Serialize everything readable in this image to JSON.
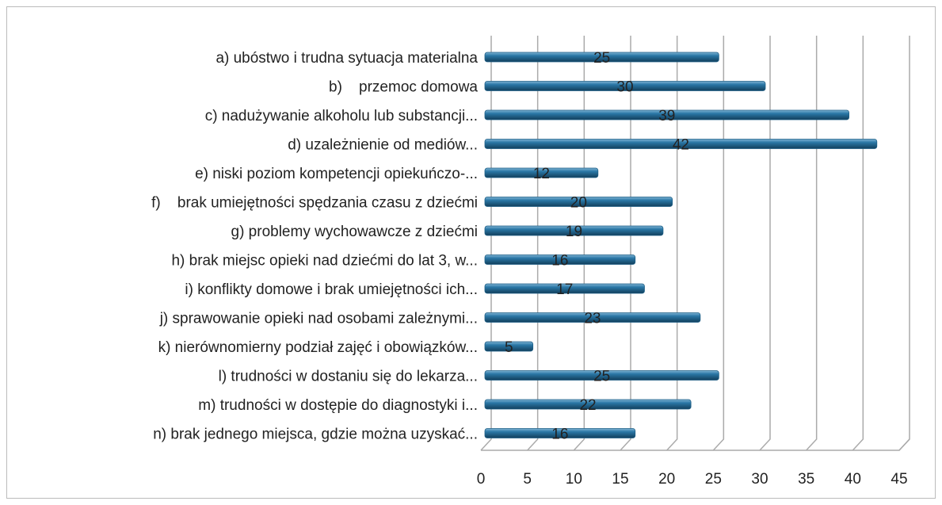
{
  "chart_data": {
    "type": "bar",
    "orientation": "horizontal",
    "categories": [
      "a) ubóstwo i trudna sytuacja materialna",
      "b)    przemoc domowa",
      "c) nadużywanie alkoholu lub substancji...",
      "d) uzależnienie od mediów...",
      "e) niski poziom kompetencji opiekuńczo-...",
      "f)    brak umiejętności spędzania czasu z dziećmi",
      "g) problemy wychowawcze z dziećmi",
      "h) brak miejsc opieki nad dziećmi do lat 3, w...",
      "i) konflikty domowe i brak umiejętności ich...",
      "j) sprawowanie opieki nad osobami zależnymi...",
      "k) nierównomierny podział zajęć i obowiązków...",
      "l) trudności w dostaniu się do lekarza...",
      "m) trudności w dostępie do diagnostyki i...",
      "n) brak jednego miejsca, gdzie można uzyskać..."
    ],
    "values": [
      25,
      30,
      39,
      42,
      12,
      20,
      19,
      16,
      17,
      23,
      5,
      25,
      22,
      16
    ],
    "color": "#1e5f86",
    "xlim": [
      0,
      45
    ],
    "xticks": [
      0,
      5,
      10,
      15,
      20,
      25,
      30,
      35,
      40,
      45
    ],
    "grid": true
  }
}
